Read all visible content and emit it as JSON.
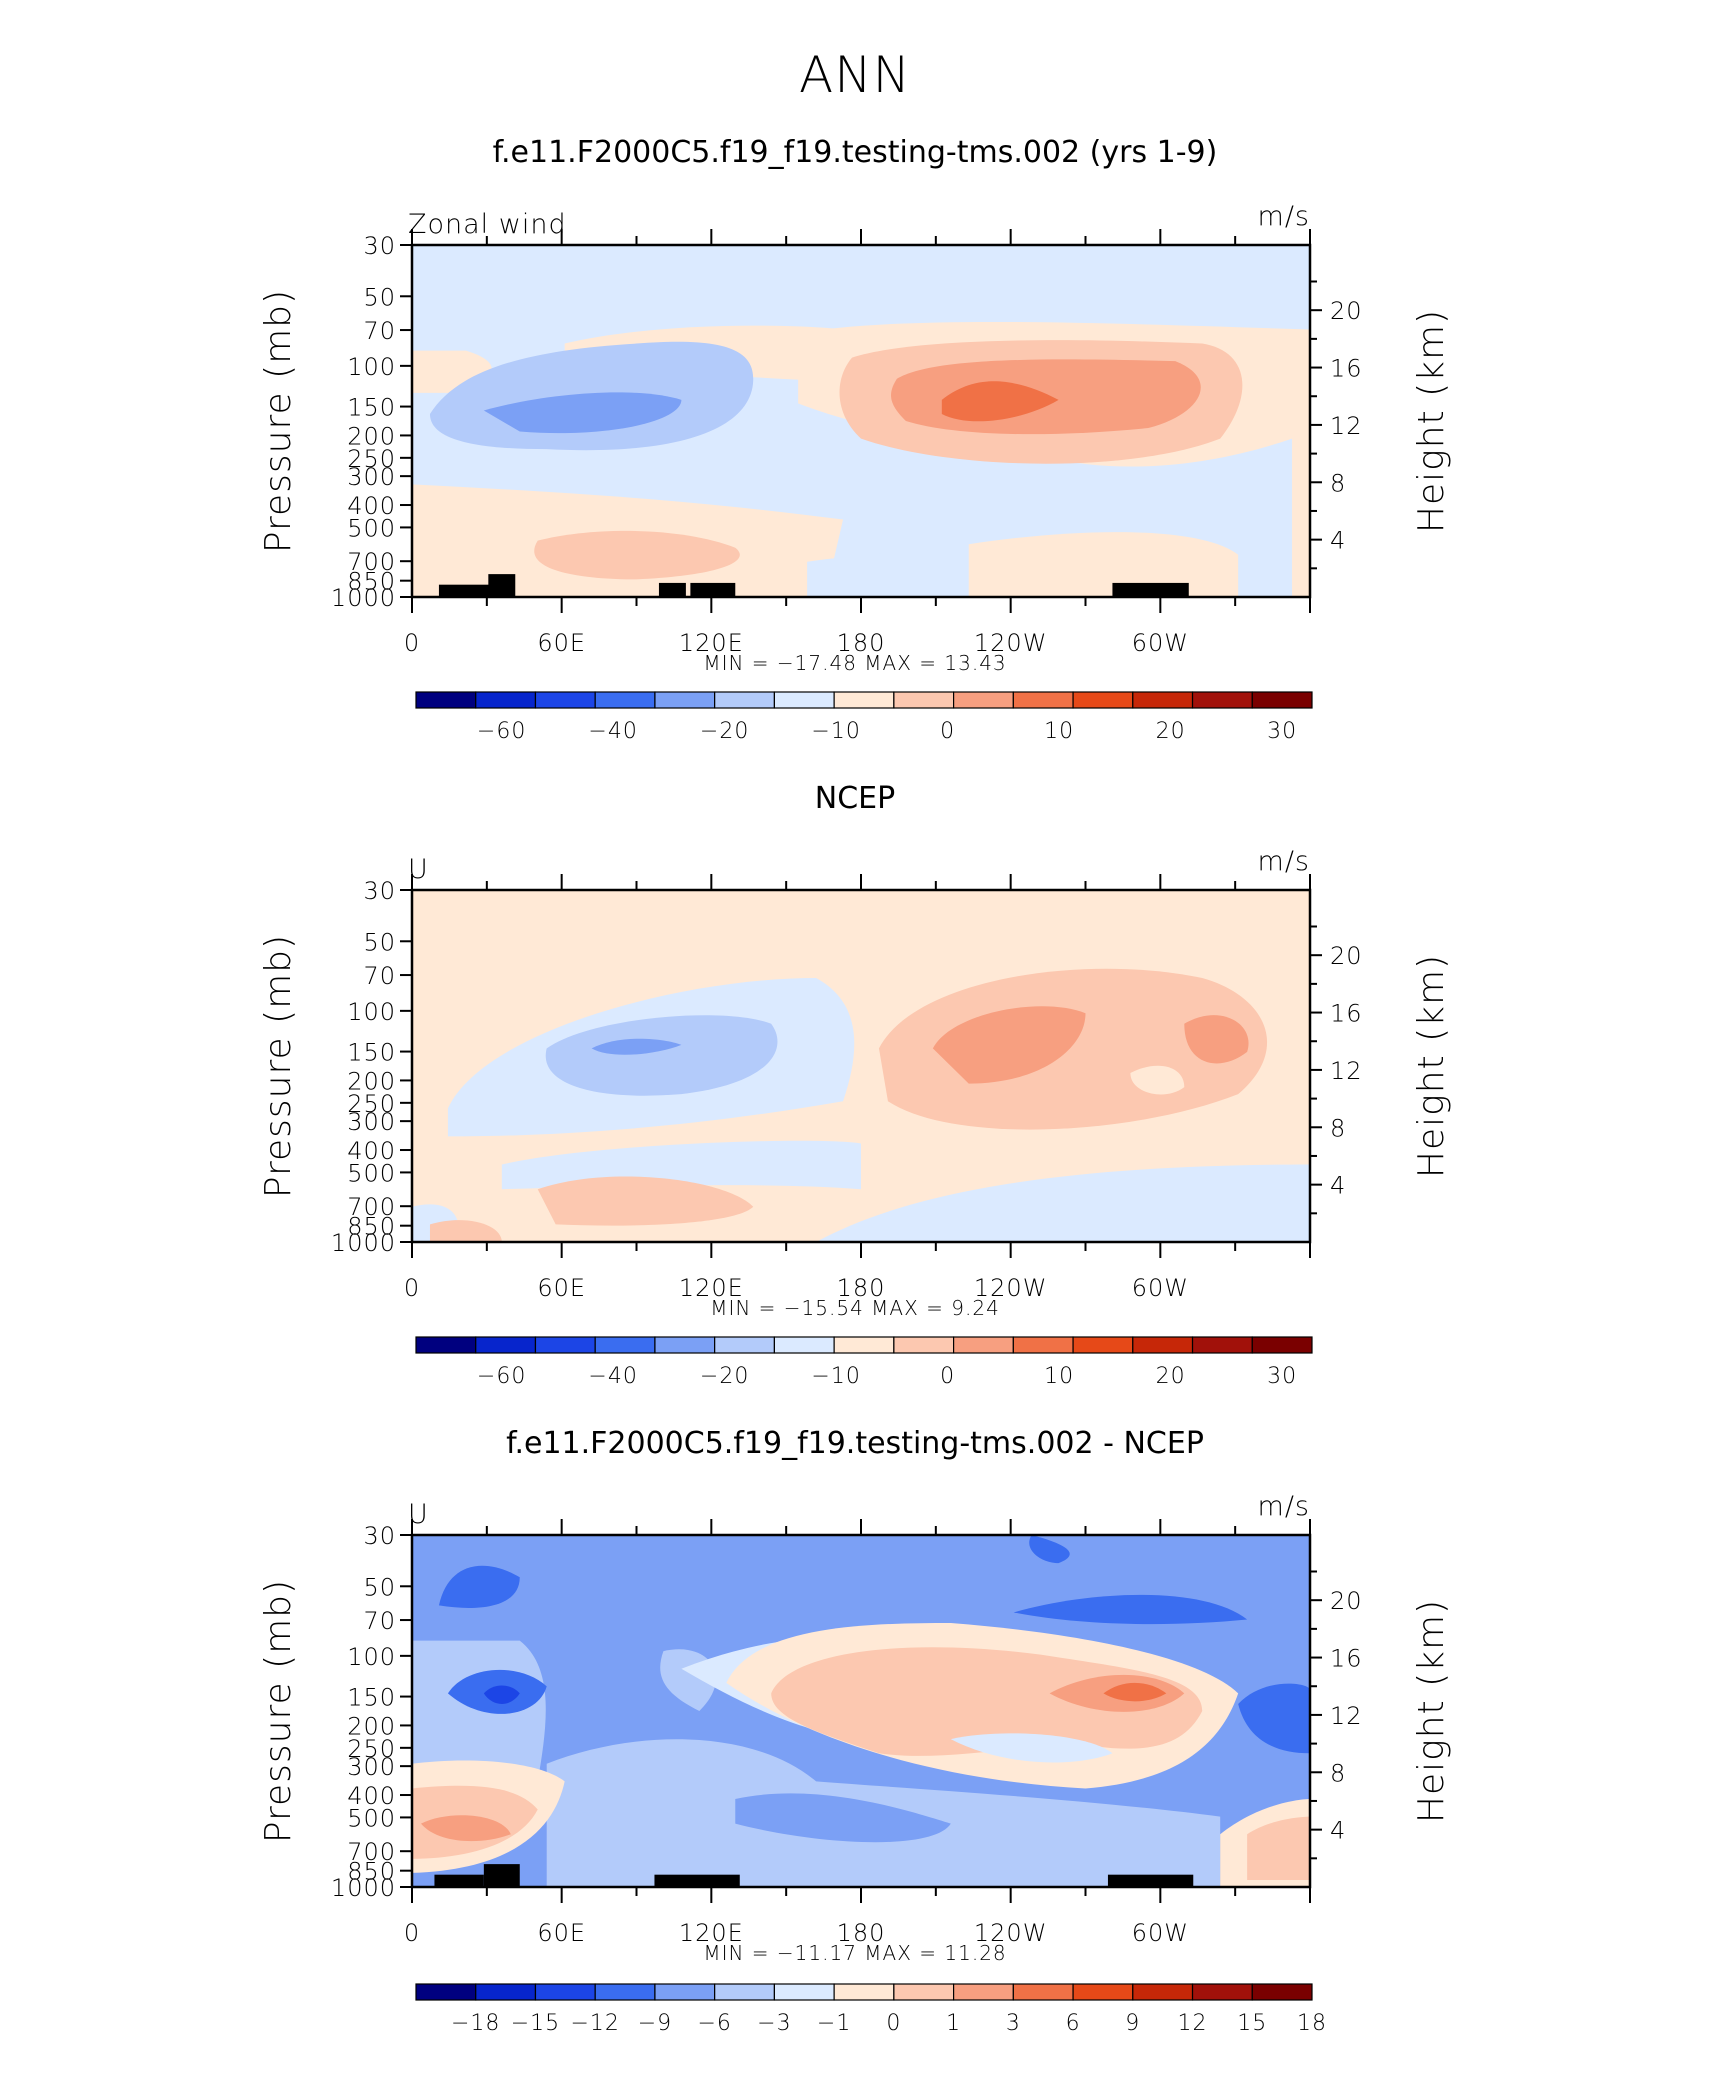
{
  "figure": {
    "title": "ANN"
  },
  "chart_data": [
    {
      "type": "heatmap",
      "title": "f.e11.F2000C5.f19_f19.testing-tms.002 (yrs 1-9)",
      "variable_label": "Zonal wind",
      "units": "m/s",
      "ylabel_left": "Pressure (mb)",
      "ylabel_right": "Height (km)",
      "y_ticks_left": [
        "30",
        "50",
        "70",
        "100",
        "150",
        "200",
        "250",
        "300",
        "400",
        "500",
        "700",
        "850",
        "1000"
      ],
      "y_ticks_right": [
        "20",
        "16",
        "12",
        "8",
        "4"
      ],
      "x_ticks": [
        "0",
        "60E",
        "120E",
        "180",
        "120W",
        "60W"
      ],
      "stats": "MIN = −17.48   MAX =   13.43",
      "colorbar_ticks": [
        "−60",
        "−40",
        "−20",
        "−10",
        "0",
        "10",
        "20",
        "30"
      ],
      "colorbar_colors": [
        "#00007f",
        "#0725cc",
        "#1c45e6",
        "#3a6df0",
        "#7ba0f5",
        "#b3cbfa",
        "#dbeaff",
        "#ffe9d6",
        "#fcc8b0",
        "#f79f80",
        "#f07146",
        "#e64918",
        "#c62708",
        "#a1110a",
        "#7a0000"
      ],
      "min": -17.48,
      "max": 13.43
    },
    {
      "type": "heatmap",
      "title": "NCEP",
      "variable_label": "U",
      "units": "m/s",
      "ylabel_left": "Pressure (mb)",
      "ylabel_right": "Height (km)",
      "y_ticks_left": [
        "30",
        "50",
        "70",
        "100",
        "150",
        "200",
        "250",
        "300",
        "400",
        "500",
        "700",
        "850",
        "1000"
      ],
      "y_ticks_right": [
        "20",
        "16",
        "12",
        "8",
        "4"
      ],
      "x_ticks": [
        "0",
        "60E",
        "120E",
        "180",
        "120W",
        "60W"
      ],
      "stats": "MIN = −15.54   MAX =    9.24",
      "colorbar_ticks": [
        "−60",
        "−40",
        "−20",
        "−10",
        "0",
        "10",
        "20",
        "30"
      ],
      "colorbar_colors": [
        "#00007f",
        "#0725cc",
        "#1c45e6",
        "#3a6df0",
        "#7ba0f5",
        "#b3cbfa",
        "#dbeaff",
        "#ffe9d6",
        "#fcc8b0",
        "#f79f80",
        "#f07146",
        "#e64918",
        "#c62708",
        "#a1110a",
        "#7a0000"
      ],
      "min": -15.54,
      "max": 9.24
    },
    {
      "type": "heatmap",
      "title": "f.e11.F2000C5.f19_f19.testing-tms.002 - NCEP",
      "variable_label": "U",
      "units": "m/s",
      "ylabel_left": "Pressure (mb)",
      "ylabel_right": "Height (km)",
      "y_ticks_left": [
        "30",
        "50",
        "70",
        "100",
        "150",
        "200",
        "250",
        "300",
        "400",
        "500",
        "700",
        "850",
        "1000"
      ],
      "y_ticks_right": [
        "20",
        "16",
        "12",
        "8",
        "4"
      ],
      "x_ticks": [
        "0",
        "60E",
        "120E",
        "180",
        "120W",
        "60W"
      ],
      "stats": "MIN = −11.17   MAX =   11.28",
      "colorbar_ticks": [
        "−18",
        "−15",
        "−12",
        "−9",
        "−6",
        "−3",
        "−1",
        "0",
        "1",
        "3",
        "6",
        "9",
        "12",
        "15",
        "18"
      ],
      "colorbar_colors": [
        "#00007f",
        "#0725cc",
        "#1c45e6",
        "#3a6df0",
        "#7ba0f5",
        "#b3cbfa",
        "#dbeaff",
        "#ffe9d6",
        "#fcc8b0",
        "#f79f80",
        "#f07146",
        "#e64918",
        "#c62708",
        "#a1110a",
        "#7a0000"
      ],
      "min": -11.17,
      "max": 11.28
    }
  ]
}
